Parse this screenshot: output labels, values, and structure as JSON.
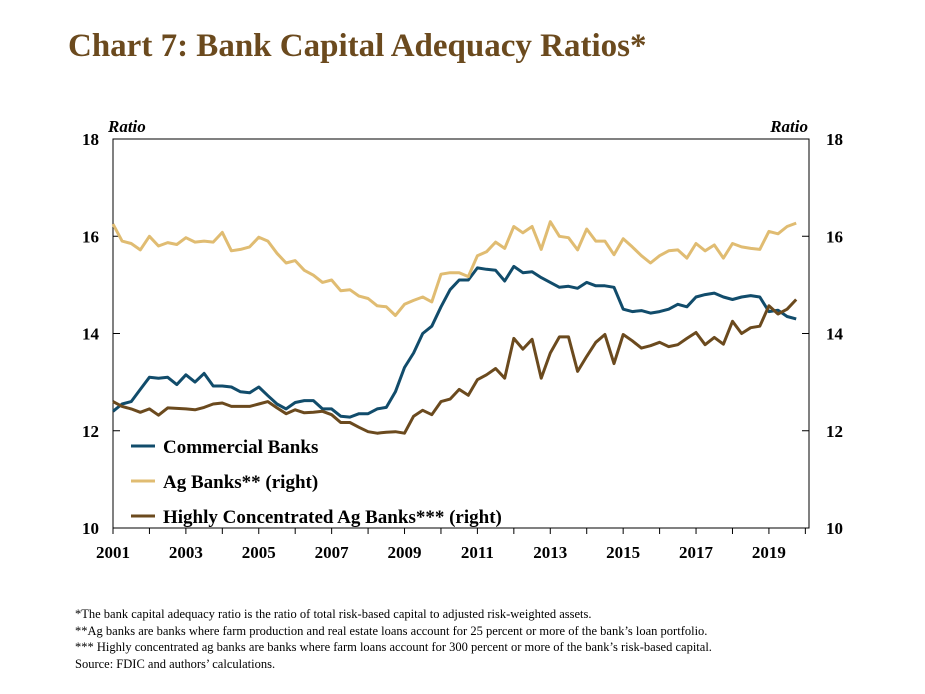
{
  "title": "Chart 7: Bank Capital Adequacy Ratios*",
  "footnotes": [
    "*The bank capital adequacy ratio is the ratio of total risk-based capital to adjusted risk-weighted assets.",
    "**Ag banks are banks where farm production and real estate loans account for 25 percent or more of the bank’s loan portfolio.",
    "*** Highly concentrated ag banks are banks where farm loans account for 300 percent or more of the bank’s risk-based capital.",
    "Source: FDIC and authors’ calculations."
  ],
  "chart_data": {
    "type": "line",
    "title": "Chart 7: Bank Capital Adequacy Ratios*",
    "y_left_label": "Ratio",
    "y_right_label": "Ratio",
    "xlim": [
      2001,
      2020.1
    ],
    "ylim": [
      10,
      18
    ],
    "x_ticks": [
      "2001",
      "2003",
      "2005",
      "2007",
      "2009",
      "2011",
      "2013",
      "2015",
      "2017",
      "2019"
    ],
    "y_ticks": [
      "10",
      "12",
      "14",
      "16",
      "18"
    ],
    "grid": false,
    "legend_position": "bottom-left",
    "series": [
      {
        "name": "Commercial Banks",
        "color": "#114c6b",
        "points": [
          [
            2001.0,
            12.4
          ],
          [
            2001.25,
            12.55
          ],
          [
            2001.5,
            12.6
          ],
          [
            2001.75,
            12.85
          ],
          [
            2002.0,
            13.1
          ],
          [
            2002.25,
            13.08
          ],
          [
            2002.5,
            13.1
          ],
          [
            2002.75,
            12.95
          ],
          [
            2003.0,
            13.15
          ],
          [
            2003.25,
            13.0
          ],
          [
            2003.5,
            13.18
          ],
          [
            2003.75,
            12.92
          ],
          [
            2004.0,
            12.92
          ],
          [
            2004.25,
            12.9
          ],
          [
            2004.5,
            12.8
          ],
          [
            2004.75,
            12.78
          ],
          [
            2005.0,
            12.9
          ],
          [
            2005.25,
            12.72
          ],
          [
            2005.5,
            12.55
          ],
          [
            2005.75,
            12.45
          ],
          [
            2006.0,
            12.58
          ],
          [
            2006.25,
            12.62
          ],
          [
            2006.5,
            12.62
          ],
          [
            2006.75,
            12.45
          ],
          [
            2007.0,
            12.45
          ],
          [
            2007.25,
            12.3
          ],
          [
            2007.5,
            12.28
          ],
          [
            2007.75,
            12.35
          ],
          [
            2008.0,
            12.35
          ],
          [
            2008.25,
            12.45
          ],
          [
            2008.5,
            12.48
          ],
          [
            2008.75,
            12.8
          ],
          [
            2009.0,
            13.3
          ],
          [
            2009.25,
            13.6
          ],
          [
            2009.5,
            14.0
          ],
          [
            2009.75,
            14.15
          ],
          [
            2010.0,
            14.55
          ],
          [
            2010.25,
            14.9
          ],
          [
            2010.5,
            15.1
          ],
          [
            2010.75,
            15.1
          ],
          [
            2011.0,
            15.35
          ],
          [
            2011.25,
            15.32
          ],
          [
            2011.5,
            15.3
          ],
          [
            2011.75,
            15.08
          ],
          [
            2012.0,
            15.38
          ],
          [
            2012.25,
            15.25
          ],
          [
            2012.5,
            15.27
          ],
          [
            2012.75,
            15.15
          ],
          [
            2013.0,
            15.05
          ],
          [
            2013.25,
            14.95
          ],
          [
            2013.5,
            14.97
          ],
          [
            2013.75,
            14.93
          ],
          [
            2014.0,
            15.05
          ],
          [
            2014.25,
            14.98
          ],
          [
            2014.5,
            14.98
          ],
          [
            2014.75,
            14.95
          ],
          [
            2015.0,
            14.5
          ],
          [
            2015.25,
            14.45
          ],
          [
            2015.5,
            14.47
          ],
          [
            2015.75,
            14.42
          ],
          [
            2016.0,
            14.45
          ],
          [
            2016.25,
            14.5
          ],
          [
            2016.5,
            14.6
          ],
          [
            2016.75,
            14.55
          ],
          [
            2017.0,
            14.75
          ],
          [
            2017.25,
            14.8
          ],
          [
            2017.5,
            14.83
          ],
          [
            2017.75,
            14.75
          ],
          [
            2018.0,
            14.7
          ],
          [
            2018.25,
            14.75
          ],
          [
            2018.5,
            14.78
          ],
          [
            2018.75,
            14.75
          ],
          [
            2019.0,
            14.45
          ],
          [
            2019.25,
            14.48
          ],
          [
            2019.5,
            14.35
          ],
          [
            2019.75,
            14.3
          ]
        ]
      },
      {
        "name": "Ag Banks** (right)",
        "color": "#e0bc72",
        "points": [
          [
            2001.0,
            16.25
          ],
          [
            2001.25,
            15.9
          ],
          [
            2001.5,
            15.85
          ],
          [
            2001.75,
            15.72
          ],
          [
            2002.0,
            16.0
          ],
          [
            2002.25,
            15.8
          ],
          [
            2002.5,
            15.87
          ],
          [
            2002.75,
            15.83
          ],
          [
            2003.0,
            15.97
          ],
          [
            2003.25,
            15.88
          ],
          [
            2003.5,
            15.9
          ],
          [
            2003.75,
            15.88
          ],
          [
            2004.0,
            16.08
          ],
          [
            2004.25,
            15.7
          ],
          [
            2004.5,
            15.73
          ],
          [
            2004.75,
            15.78
          ],
          [
            2005.0,
            15.98
          ],
          [
            2005.25,
            15.9
          ],
          [
            2005.5,
            15.65
          ],
          [
            2005.75,
            15.45
          ],
          [
            2006.0,
            15.5
          ],
          [
            2006.25,
            15.3
          ],
          [
            2006.5,
            15.2
          ],
          [
            2006.75,
            15.05
          ],
          [
            2007.0,
            15.1
          ],
          [
            2007.25,
            14.88
          ],
          [
            2007.5,
            14.9
          ],
          [
            2007.75,
            14.77
          ],
          [
            2008.0,
            14.72
          ],
          [
            2008.25,
            14.57
          ],
          [
            2008.5,
            14.55
          ],
          [
            2008.75,
            14.37
          ],
          [
            2009.0,
            14.6
          ],
          [
            2009.25,
            14.68
          ],
          [
            2009.5,
            14.75
          ],
          [
            2009.75,
            14.65
          ],
          [
            2010.0,
            15.22
          ],
          [
            2010.25,
            15.25
          ],
          [
            2010.5,
            15.25
          ],
          [
            2010.75,
            15.17
          ],
          [
            2011.0,
            15.6
          ],
          [
            2011.25,
            15.68
          ],
          [
            2011.5,
            15.88
          ],
          [
            2011.75,
            15.75
          ],
          [
            2012.0,
            16.2
          ],
          [
            2012.25,
            16.07
          ],
          [
            2012.5,
            16.2
          ],
          [
            2012.75,
            15.73
          ],
          [
            2013.0,
            16.3
          ],
          [
            2013.25,
            16.0
          ],
          [
            2013.5,
            15.97
          ],
          [
            2013.75,
            15.72
          ],
          [
            2014.0,
            16.15
          ],
          [
            2014.25,
            15.9
          ],
          [
            2014.5,
            15.9
          ],
          [
            2014.75,
            15.62
          ],
          [
            2015.0,
            15.95
          ],
          [
            2015.25,
            15.78
          ],
          [
            2015.5,
            15.6
          ],
          [
            2015.75,
            15.45
          ],
          [
            2016.0,
            15.6
          ],
          [
            2016.25,
            15.7
          ],
          [
            2016.5,
            15.72
          ],
          [
            2016.75,
            15.55
          ],
          [
            2017.0,
            15.85
          ],
          [
            2017.25,
            15.7
          ],
          [
            2017.5,
            15.82
          ],
          [
            2017.75,
            15.55
          ],
          [
            2018.0,
            15.85
          ],
          [
            2018.25,
            15.78
          ],
          [
            2018.5,
            15.75
          ],
          [
            2018.75,
            15.73
          ],
          [
            2019.0,
            16.1
          ],
          [
            2019.25,
            16.05
          ],
          [
            2019.5,
            16.2
          ],
          [
            2019.75,
            16.27
          ]
        ]
      },
      {
        "name": "Highly Concentrated Ag Banks*** (right)",
        "color": "#6b4a1e",
        "points": [
          [
            2001.0,
            12.6
          ],
          [
            2001.25,
            12.5
          ],
          [
            2001.5,
            12.45
          ],
          [
            2001.75,
            12.38
          ],
          [
            2002.0,
            12.45
          ],
          [
            2002.25,
            12.32
          ],
          [
            2002.5,
            12.47
          ],
          [
            2002.75,
            12.46
          ],
          [
            2003.0,
            12.45
          ],
          [
            2003.25,
            12.43
          ],
          [
            2003.5,
            12.48
          ],
          [
            2003.75,
            12.55
          ],
          [
            2004.0,
            12.57
          ],
          [
            2004.25,
            12.5
          ],
          [
            2004.5,
            12.5
          ],
          [
            2004.75,
            12.5
          ],
          [
            2005.0,
            12.55
          ],
          [
            2005.25,
            12.6
          ],
          [
            2005.5,
            12.47
          ],
          [
            2005.75,
            12.35
          ],
          [
            2006.0,
            12.43
          ],
          [
            2006.25,
            12.37
          ],
          [
            2006.5,
            12.38
          ],
          [
            2006.75,
            12.4
          ],
          [
            2007.0,
            12.33
          ],
          [
            2007.25,
            12.17
          ],
          [
            2007.5,
            12.17
          ],
          [
            2007.75,
            12.07
          ],
          [
            2008.0,
            11.98
          ],
          [
            2008.25,
            11.95
          ],
          [
            2008.5,
            11.97
          ],
          [
            2008.75,
            11.98
          ],
          [
            2009.0,
            11.95
          ],
          [
            2009.25,
            12.3
          ],
          [
            2009.5,
            12.42
          ],
          [
            2009.75,
            12.33
          ],
          [
            2010.0,
            12.6
          ],
          [
            2010.25,
            12.65
          ],
          [
            2010.5,
            12.85
          ],
          [
            2010.75,
            12.73
          ],
          [
            2011.0,
            13.05
          ],
          [
            2011.25,
            13.15
          ],
          [
            2011.5,
            13.28
          ],
          [
            2011.75,
            13.08
          ],
          [
            2012.0,
            13.9
          ],
          [
            2012.25,
            13.68
          ],
          [
            2012.5,
            13.88
          ],
          [
            2012.75,
            13.08
          ],
          [
            2013.0,
            13.6
          ],
          [
            2013.25,
            13.93
          ],
          [
            2013.5,
            13.93
          ],
          [
            2013.75,
            13.22
          ],
          [
            2014.0,
            13.53
          ],
          [
            2014.25,
            13.82
          ],
          [
            2014.5,
            13.98
          ],
          [
            2014.75,
            13.38
          ],
          [
            2015.0,
            13.98
          ],
          [
            2015.25,
            13.85
          ],
          [
            2015.5,
            13.7
          ],
          [
            2015.75,
            13.75
          ],
          [
            2016.0,
            13.82
          ],
          [
            2016.25,
            13.73
          ],
          [
            2016.5,
            13.77
          ],
          [
            2016.75,
            13.9
          ],
          [
            2017.0,
            14.02
          ],
          [
            2017.25,
            13.77
          ],
          [
            2017.5,
            13.92
          ],
          [
            2017.75,
            13.78
          ],
          [
            2018.0,
            14.25
          ],
          [
            2018.25,
            14.0
          ],
          [
            2018.5,
            14.12
          ],
          [
            2018.75,
            14.15
          ],
          [
            2019.0,
            14.57
          ],
          [
            2019.25,
            14.4
          ],
          [
            2019.5,
            14.5
          ],
          [
            2019.75,
            14.7
          ]
        ]
      }
    ]
  }
}
